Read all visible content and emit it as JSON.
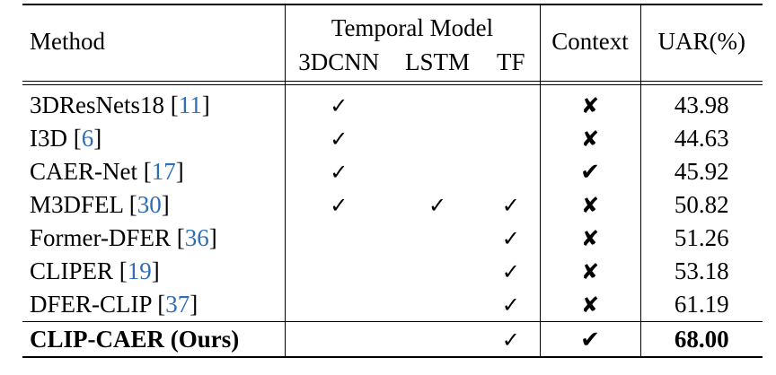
{
  "table": {
    "header": {
      "method": "Method",
      "temporal_model": "Temporal Model",
      "temporal_subcols": [
        "3DCNN",
        "LSTM",
        "TF"
      ],
      "context": "Context",
      "uar": "UAR(%)"
    },
    "rows": [
      {
        "name": "3DResNets18",
        "cite": "11",
        "cnn": "✓",
        "lstm": "",
        "tf": "",
        "context": "✘",
        "uar": "43.98"
      },
      {
        "name": "I3D",
        "cite": "6",
        "cnn": "✓",
        "lstm": "",
        "tf": "",
        "context": "✘",
        "uar": "44.63"
      },
      {
        "name": "CAER-Net",
        "cite": "17",
        "cnn": "✓",
        "lstm": "",
        "tf": "",
        "context": "✔",
        "uar": "45.92"
      },
      {
        "name": "M3DFEL",
        "cite": "30",
        "cnn": "✓",
        "lstm": "✓",
        "tf": "✓",
        "context": "✘",
        "uar": "50.82"
      },
      {
        "name": "Former-DFER",
        "cite": "36",
        "cnn": "",
        "lstm": "",
        "tf": "✓",
        "context": "✘",
        "uar": "51.26"
      },
      {
        "name": "CLIPER ",
        "cite": "19",
        "cnn": "",
        "lstm": "",
        "tf": "✓",
        "context": "✘",
        "uar": "53.18"
      },
      {
        "name": "DFER-CLIP",
        "cite": "37",
        "cnn": "",
        "lstm": "",
        "tf": "✓",
        "context": "✘",
        "uar": "61.19"
      }
    ],
    "ours": {
      "name": "CLIP-CAER (Ours)",
      "cnn": "",
      "lstm": "",
      "tf": "✓",
      "context": "✔",
      "uar": "68.00"
    },
    "cite_color": "#2f6db5"
  }
}
